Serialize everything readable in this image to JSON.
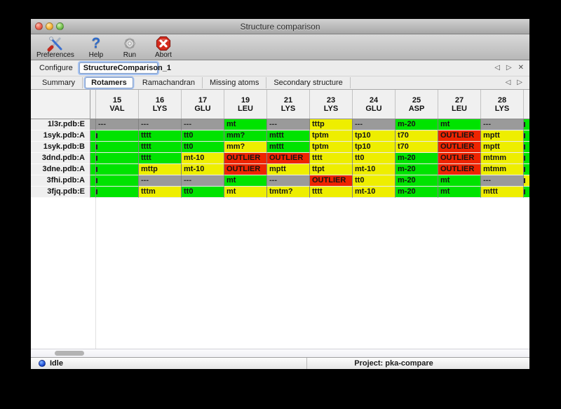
{
  "window": {
    "title": "Structure comparison"
  },
  "toolbar": {
    "items": [
      {
        "label": "Preferences"
      },
      {
        "label": "Help"
      },
      {
        "label": "Run"
      },
      {
        "label": "Abort"
      }
    ]
  },
  "configure": {
    "label": "Configure",
    "value": "StructureComparison_1",
    "nav": {
      "prev": "◁",
      "next": "▷",
      "close": "✕"
    }
  },
  "tabs": {
    "items": [
      "Summary",
      "Rotamers",
      "Ramachandran",
      "Missing atoms",
      "Secondary structure"
    ],
    "active": "Rotamers",
    "nav": {
      "prev": "◁",
      "next": "▷"
    }
  },
  "rotamer_table": {
    "columns": [
      {
        "num": "15",
        "res": "VAL"
      },
      {
        "num": "16",
        "res": "LYS"
      },
      {
        "num": "17",
        "res": "GLU"
      },
      {
        "num": "19",
        "res": "LEU"
      },
      {
        "num": "21",
        "res": "LYS"
      },
      {
        "num": "23",
        "res": "LYS"
      },
      {
        "num": "24",
        "res": "GLU"
      },
      {
        "num": "25",
        "res": "ASP"
      },
      {
        "num": "27",
        "res": "LEU"
      },
      {
        "num": "28",
        "res": "LYS"
      }
    ],
    "rows": [
      {
        "label": "1l3r.pdb:E",
        "left": "gray",
        "right": "green",
        "cells": [
          [
            "gray",
            "---"
          ],
          [
            "gray",
            "---"
          ],
          [
            "gray",
            "---"
          ],
          [
            "green",
            "mt"
          ],
          [
            "gray",
            "---"
          ],
          [
            "yellow",
            "tttp"
          ],
          [
            "gray",
            "---"
          ],
          [
            "green",
            "m-20"
          ],
          [
            "green",
            "mt"
          ],
          [
            "gray",
            "---"
          ]
        ]
      },
      {
        "label": "1syk.pdb:A",
        "left": "green",
        "right": "green",
        "cells": [
          [
            "green",
            "",
            1
          ],
          [
            "green",
            "tttt"
          ],
          [
            "green",
            "tt0"
          ],
          [
            "green",
            "mm?"
          ],
          [
            "green",
            "mttt"
          ],
          [
            "yellow",
            "tptm"
          ],
          [
            "yellow",
            "tp10"
          ],
          [
            "yellow",
            "t70"
          ],
          [
            "red",
            "OUTLIER"
          ],
          [
            "yellow",
            "mptt"
          ]
        ]
      },
      {
        "label": "1syk.pdb:B",
        "left": "green",
        "right": "green",
        "cells": [
          [
            "green",
            "",
            1
          ],
          [
            "green",
            "tttt"
          ],
          [
            "green",
            "tt0"
          ],
          [
            "yellow",
            "mm?"
          ],
          [
            "green",
            "mttt"
          ],
          [
            "yellow",
            "tptm"
          ],
          [
            "yellow",
            "tp10"
          ],
          [
            "yellow",
            "t70"
          ],
          [
            "red",
            "OUTLIER"
          ],
          [
            "yellow",
            "mptt"
          ]
        ]
      },
      {
        "label": "3dnd.pdb:A",
        "left": "green",
        "right": "green",
        "cells": [
          [
            "green",
            "",
            1
          ],
          [
            "green",
            "tttt"
          ],
          [
            "yellow",
            "mt-10"
          ],
          [
            "red",
            "OUTLIER"
          ],
          [
            "red",
            "OUTLIER"
          ],
          [
            "yellow",
            "tttt"
          ],
          [
            "yellow",
            "tt0"
          ],
          [
            "green",
            "m-20"
          ],
          [
            "red",
            "OUTLIER"
          ],
          [
            "yellow",
            "mtmm"
          ]
        ]
      },
      {
        "label": "3dne.pdb:A",
        "left": "green",
        "right": "green",
        "cells": [
          [
            "green",
            "",
            1
          ],
          [
            "yellow",
            "mttp"
          ],
          [
            "yellow",
            "mt-10"
          ],
          [
            "red",
            "OUTLIER"
          ],
          [
            "yellow",
            "mptt"
          ],
          [
            "yellow",
            "ttpt"
          ],
          [
            "yellow",
            "mt-10"
          ],
          [
            "green",
            "m-20"
          ],
          [
            "red",
            "OUTLIER"
          ],
          [
            "yellow",
            "mtmm"
          ]
        ]
      },
      {
        "label": "3fhi.pdb:A",
        "left": "green",
        "right": "yellow",
        "cells": [
          [
            "green",
            "",
            1
          ],
          [
            "gray",
            "---"
          ],
          [
            "gray",
            "---"
          ],
          [
            "green",
            "mt"
          ],
          [
            "gray",
            "---"
          ],
          [
            "red",
            "OUTLIER"
          ],
          [
            "yellow",
            "tt0"
          ],
          [
            "green",
            "m-20"
          ],
          [
            "green",
            "mt"
          ],
          [
            "gray",
            "---"
          ]
        ]
      },
      {
        "label": "3fjq.pdb:E",
        "left": "green",
        "right": "green",
        "cells": [
          [
            "green",
            "",
            1
          ],
          [
            "yellow",
            "tttm"
          ],
          [
            "green",
            "tt0"
          ],
          [
            "yellow",
            "mt"
          ],
          [
            "yellow",
            "tmtm?"
          ],
          [
            "yellow",
            "tttt"
          ],
          [
            "yellow",
            "mt-10"
          ],
          [
            "green",
            "m-20"
          ],
          [
            "green",
            "mt"
          ],
          [
            "yellow",
            "mttt"
          ]
        ]
      }
    ]
  },
  "status": {
    "state": "Idle",
    "project": "Project: pka-compare"
  },
  "colors": {
    "green": "#00e300",
    "yellow": "#eeee00",
    "red": "#ee2400",
    "gray": "#9a9a9a"
  }
}
